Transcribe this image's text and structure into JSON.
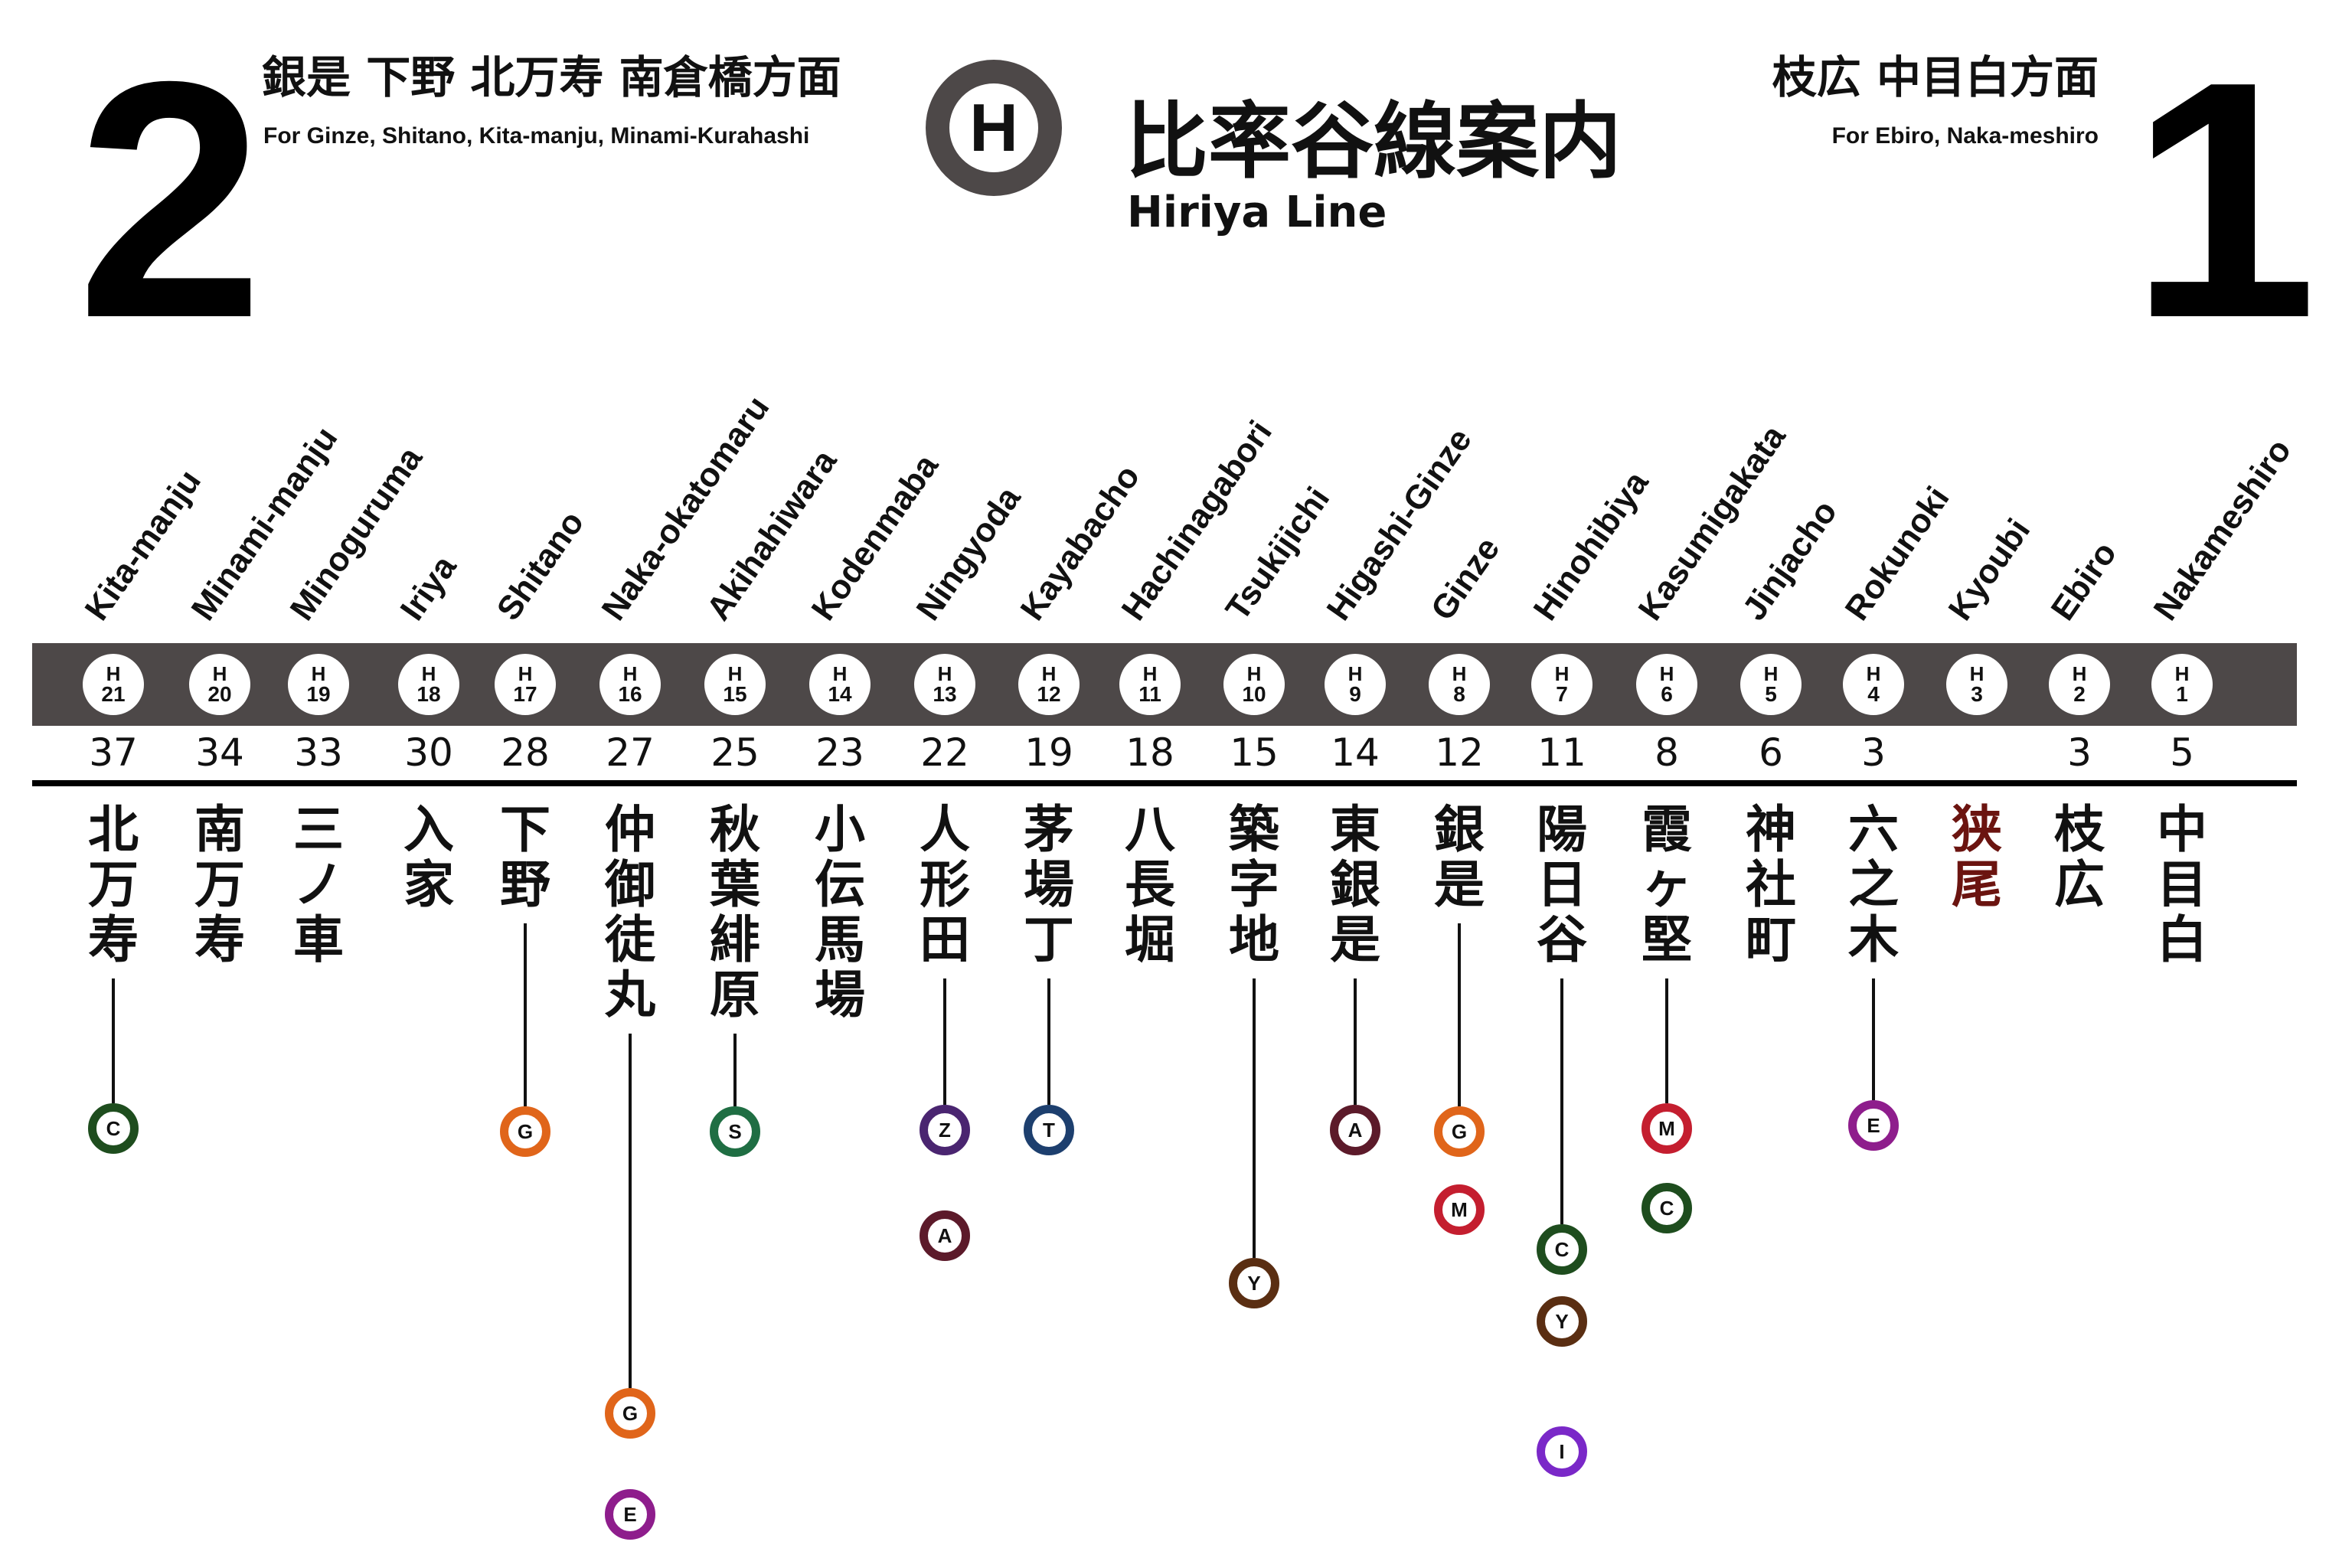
{
  "direction_2": {
    "number": "2",
    "jp": "銀是 下野 北万寿 南倉橋方面",
    "en": "For Ginze, Shitano, Kita-manju, Minami-Kurahashi"
  },
  "direction_1": {
    "number": "1",
    "jp": "枝広 中目白方面",
    "en": "For Ebiro, Naka-meshiro"
  },
  "line": {
    "logo_letter": "H",
    "title_jp": "比率谷線案内",
    "title_en": "Hiriya Line",
    "color": "#4d4848"
  },
  "transfer_lines": {
    "C": "#1e4d1e",
    "G": "#e0651a",
    "S": "#1f6e43",
    "Z": "#4a2570",
    "A": "#5c1a2a",
    "T": "#1d3f6e",
    "Y": "#5a2e12",
    "M": "#c41e2f",
    "E": "#8e1d8c",
    "I": "#7a28c8"
  },
  "current_station_color": "#6b1410",
  "stations": [
    {
      "code_letter": "H",
      "code_num": "21",
      "en": "Kita-manju",
      "jp": "北万寿",
      "minutes": "37",
      "current": false,
      "transfers": [
        "C"
      ]
    },
    {
      "code_letter": "H",
      "code_num": "20",
      "en": "Minami-manju",
      "jp": "南万寿",
      "minutes": "34",
      "current": false,
      "transfers": []
    },
    {
      "code_letter": "H",
      "code_num": "19",
      "en": "Minoguruma",
      "jp": "三ノ車",
      "minutes": "33",
      "current": false,
      "transfers": []
    },
    {
      "code_letter": "H",
      "code_num": "18",
      "en": "Iriya",
      "jp": "入家",
      "minutes": "30",
      "current": false,
      "transfers": []
    },
    {
      "code_letter": "H",
      "code_num": "17",
      "en": "Shitano",
      "jp": "下野",
      "minutes": "28",
      "current": false,
      "transfers": [
        "G"
      ]
    },
    {
      "code_letter": "H",
      "code_num": "16",
      "en": "Naka-okatomaru",
      "jp": "仲御徒丸",
      "minutes": "27",
      "current": false,
      "transfers": [
        "G",
        "E"
      ]
    },
    {
      "code_letter": "H",
      "code_num": "15",
      "en": "Akihahiwara",
      "jp": "秋葉緋原",
      "minutes": "25",
      "current": false,
      "transfers": [
        "S"
      ]
    },
    {
      "code_letter": "H",
      "code_num": "14",
      "en": "Kodenmaba",
      "jp": "小伝馬場",
      "minutes": "23",
      "current": false,
      "transfers": []
    },
    {
      "code_letter": "H",
      "code_num": "13",
      "en": "Ningyoda",
      "jp": "人形田",
      "minutes": "22",
      "current": false,
      "transfers": [
        "Z",
        "A"
      ]
    },
    {
      "code_letter": "H",
      "code_num": "12",
      "en": "Kayabacho",
      "jp": "茅場丁",
      "minutes": "19",
      "current": false,
      "transfers": [
        "T"
      ]
    },
    {
      "code_letter": "H",
      "code_num": "11",
      "en": "Hachinagabori",
      "jp": "八長堀",
      "minutes": "18",
      "current": false,
      "transfers": []
    },
    {
      "code_letter": "H",
      "code_num": "10",
      "en": "Tsukijichi",
      "jp": "築字地",
      "minutes": "15",
      "current": false,
      "transfers": [
        "Y"
      ]
    },
    {
      "code_letter": "H",
      "code_num": "9",
      "en": "Higashi-Ginze",
      "jp": "東銀是",
      "minutes": "14",
      "current": false,
      "transfers": [
        "A"
      ]
    },
    {
      "code_letter": "H",
      "code_num": "8",
      "en": "Ginze",
      "jp": "銀是",
      "minutes": "12",
      "current": false,
      "transfers": [
        "G",
        "M"
      ]
    },
    {
      "code_letter": "H",
      "code_num": "7",
      "en": "Hinohibiya",
      "jp": "陽日谷",
      "minutes": "11",
      "current": false,
      "transfers": [
        "C",
        "Y",
        "I"
      ]
    },
    {
      "code_letter": "H",
      "code_num": "6",
      "en": "Kasumigakata",
      "jp": "霞ヶ堅",
      "minutes": "8",
      "current": false,
      "transfers": [
        "M",
        "C"
      ]
    },
    {
      "code_letter": "H",
      "code_num": "5",
      "en": "Jinjacho",
      "jp": "神社町",
      "minutes": "6",
      "current": false,
      "transfers": []
    },
    {
      "code_letter": "H",
      "code_num": "4",
      "en": "Rokunoki",
      "jp": "六之木",
      "minutes": "3",
      "current": false,
      "transfers": [
        "E"
      ]
    },
    {
      "code_letter": "H",
      "code_num": "3",
      "en": "Kyoubi",
      "jp": "狭尾",
      "minutes": "",
      "current": true,
      "transfers": []
    },
    {
      "code_letter": "H",
      "code_num": "2",
      "en": "Ebiro",
      "jp": "枝広",
      "minutes": "3",
      "current": false,
      "transfers": []
    },
    {
      "code_letter": "H",
      "code_num": "1",
      "en": "Nakameshiro",
      "jp": "中目白",
      "minutes": "5",
      "current": false,
      "transfers": []
    }
  ]
}
